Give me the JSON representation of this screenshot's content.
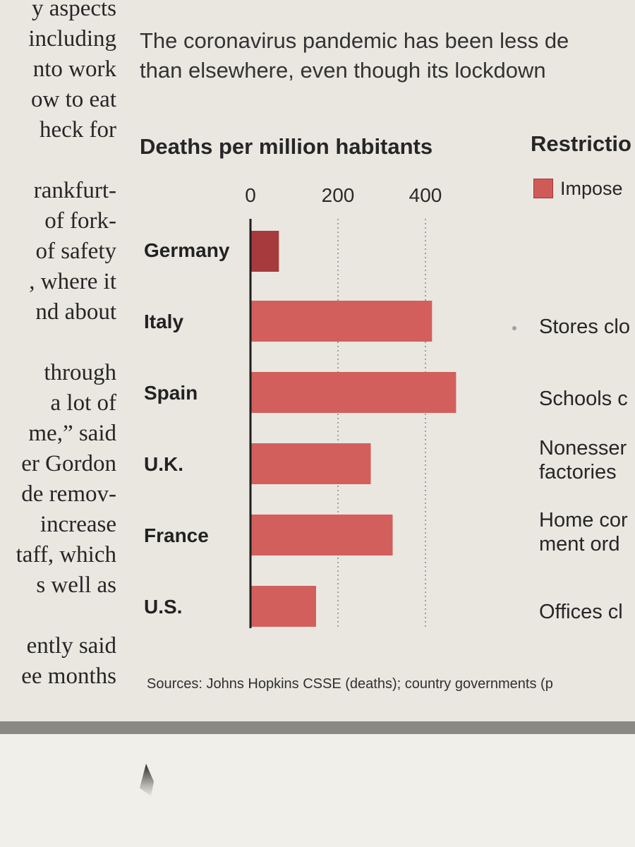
{
  "article_column": {
    "lines": [
      "y aspects",
      "including",
      "nto work",
      "ow to eat",
      "heck for",
      "rankfurt-",
      "of fork-",
      "of safety",
      ", where it",
      "nd about",
      "through",
      "a lot of",
      "me,” said",
      "er Gordon",
      "de remov-",
      "increase",
      "taff, which",
      "s well as",
      "ently said",
      "ee months"
    ]
  },
  "subtitle": {
    "line1": "The coronavirus pandemic has been less de",
    "line2": "than elsewhere, even though its lockdown"
  },
  "restrictions": {
    "title": "Restrictio",
    "legend_label": "Impose",
    "events": [
      "Stores clo",
      "Schools c",
      "Nonesser\nfactories",
      "Home cor\nment ord",
      "Offices cl"
    ]
  },
  "source": "Sources: Johns Hopkins CSSE (deaths); country governments (p",
  "chart_data": {
    "type": "bar",
    "orientation": "horizontal",
    "title": "Deaths per million habitants",
    "categories": [
      "Germany",
      "Italy",
      "Spain",
      "U.K.",
      "France",
      "U.S."
    ],
    "values": [
      65,
      415,
      470,
      275,
      325,
      150
    ],
    "xlim": [
      0,
      470
    ],
    "xticks": [
      0,
      200,
      400
    ],
    "tick_labels": [
      "0",
      "200",
      "400"
    ],
    "grid": true,
    "highlight_category": "Germany",
    "colors": {
      "bar": "#d35f5d",
      "highlight": "#a63a3d",
      "axis": "#1e1e1e",
      "grid": "#8a8884"
    }
  }
}
